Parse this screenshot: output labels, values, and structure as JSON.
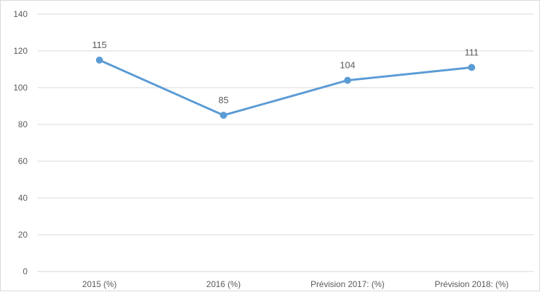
{
  "chart_data": {
    "type": "line",
    "categories": [
      "2015 (%)",
      "2016 (%)",
      "Prévision 2017: (%)",
      "Prévision 2018: (%)"
    ],
    "series": [
      {
        "values": [
          115,
          85,
          104,
          111
        ],
        "color": "#5b9bd5"
      }
    ],
    "data_labels": [
      "115",
      "85",
      "104",
      "111"
    ],
    "y_ticks": [
      "0",
      "20",
      "40",
      "60",
      "80",
      "100",
      "120",
      "140"
    ],
    "ylim": [
      0,
      140
    ],
    "grid": true,
    "legend": "none",
    "title": "",
    "xlabel": "",
    "ylabel": ""
  }
}
